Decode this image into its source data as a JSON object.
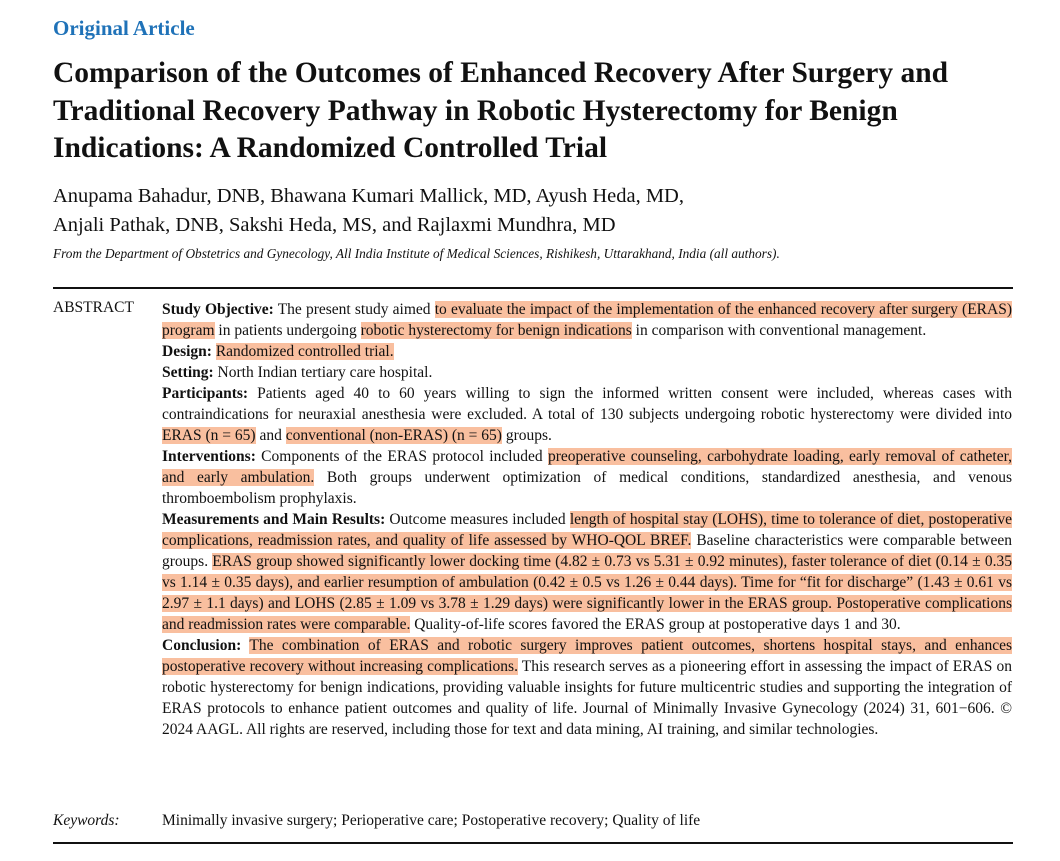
{
  "kicker": "Original Article",
  "title": "Comparison of the Outcomes of Enhanced Recovery After Surgery and Traditional Recovery Pathway in Robotic Hysterectomy for Benign Indications: A Randomized Controlled Trial",
  "authors": {
    "line1": "Anupama Bahadur, DNB, Bhawana Kumari Mallick, MD, Ayush Heda, MD,",
    "line2": "Anjali Pathak, DNB, Sakshi Heda, MS, and Rajlaxmi Mundhra, MD"
  },
  "affiliation": "From the Department of Obstetrics and Gynecology, All India Institute of Medical Sciences, Rishikesh, Uttarakhand, India (all authors).",
  "highlight_color": "#f9bf9f",
  "abstract_label": "ABSTRACT",
  "abstract": [
    {
      "label": "Study Objective:",
      "segments": [
        {
          "t": " The present study aimed ",
          "h": false
        },
        {
          "t": "to evaluate the impact of the implementation of the enhanced recovery after surgery (ERAS) program",
          "h": true
        },
        {
          "t": " in patients undergoing ",
          "h": false
        },
        {
          "t": "robotic hysterectomy for benign indications",
          "h": true
        },
        {
          "t": " in comparison with conventional management.",
          "h": false
        }
      ]
    },
    {
      "label": "Design:",
      "segments": [
        {
          "t": " ",
          "h": false
        },
        {
          "t": "Randomized controlled trial.",
          "h": true
        }
      ]
    },
    {
      "label": "Setting:",
      "segments": [
        {
          "t": " North Indian tertiary care hospital.",
          "h": false
        }
      ]
    },
    {
      "label": "Participants:",
      "segments": [
        {
          "t": " Patients aged 40 to 60 years willing to sign the informed written consent were included, whereas cases with contraindications for neuraxial anesthesia were excluded. A total of 130 subjects undergoing robotic hysterectomy were divided into ",
          "h": false
        },
        {
          "t": "ERAS (n = 65)",
          "h": true
        },
        {
          "t": " and ",
          "h": false
        },
        {
          "t": "conventional (non-ERAS) (n = 65)",
          "h": true
        },
        {
          "t": " groups.",
          "h": false
        }
      ]
    },
    {
      "label": "Interventions:",
      "segments": [
        {
          "t": " Components of the ERAS protocol included ",
          "h": false
        },
        {
          "t": "preoperative counseling, carbohydrate loading, early removal of catheter, and early ambulation.",
          "h": true
        },
        {
          "t": " Both groups underwent optimization of medical conditions, standardized anesthesia, and venous thromboembolism prophylaxis.",
          "h": false
        }
      ]
    },
    {
      "label": "Measurements and Main Results:",
      "segments": [
        {
          "t": " Outcome measures included ",
          "h": false
        },
        {
          "t": "length of hospital stay (LOHS), time to tolerance of diet, postoperative complications, readmission rates, and quality of life assessed by WHO-QOL BREF.",
          "h": true
        },
        {
          "t": " Baseline characteristics were comparable between groups. ",
          "h": false
        },
        {
          "t": "ERAS group showed significantly lower docking time (4.82 ± 0.73 vs 5.31 ± 0.92 minutes), faster tolerance of diet (0.14 ± 0.35 vs 1.14 ± 0.35 days), and earlier resumption of ambulation (0.42 ± 0.5 vs 1.26 ± 0.44 days). Time for “fit for discharge” (1.43 ± 0.61 vs 2.97 ± 1.1 days) and LOHS (2.85 ± 1.09 vs 3.78 ± 1.29 days) were significantly lower in the ERAS group. Postoperative complications and readmission rates were comparable.",
          "h": true
        },
        {
          "t": " Quality-of-life scores favored the ERAS group at postoperative days 1 and 30.",
          "h": false
        }
      ]
    },
    {
      "label": "Conclusion:",
      "segments": [
        {
          "t": " ",
          "h": false
        },
        {
          "t": "The combination of ERAS and robotic surgery improves patient outcomes, shortens hospital stays, and enhances postoperative recovery without increasing complications.",
          "h": true
        },
        {
          "t": " This research serves as a pioneering effort in assessing the impact of ERAS on robotic hysterectomy for benign indications, providing valuable insights for future multicentric studies and supporting the integration of ERAS protocols to enhance patient outcomes and quality of life. Journal of Minimally Invasive Gynecology (2024) 31, 601−606. © 2024 AAGL. All rights are reserved, including those for text and data mining, AI training, and similar technologies.",
          "h": false
        }
      ]
    }
  ],
  "keywords_label": "Keywords:",
  "keywords": "Minimally invasive surgery; Perioperative care; Postoperative recovery; Quality of life"
}
